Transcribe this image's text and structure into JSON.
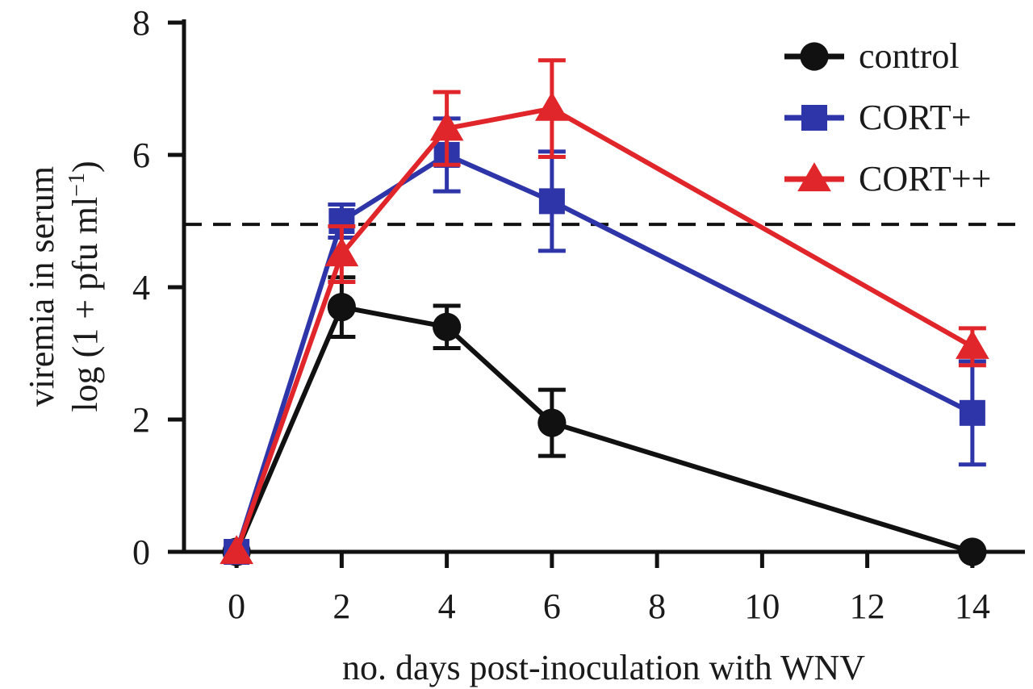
{
  "chart_data": {
    "type": "line",
    "xlabel": "no. days post-inoculation with WNV",
    "ylabel_line1": "viremia in serum",
    "ylabel_line2_prefix": "log (1 + pfu ml",
    "ylabel_line2_sup": "−1",
    "ylabel_line2_suffix": ")",
    "xlim": [
      -1,
      15
    ],
    "ylim": [
      0,
      8
    ],
    "x_ticks": [
      0,
      2,
      4,
      6,
      8,
      10,
      12,
      14
    ],
    "x_tick_labels": [
      "0",
      "2",
      "4",
      "6",
      "8",
      "10",
      "12",
      "14"
    ],
    "y_ticks": [
      0,
      2,
      4,
      6,
      8
    ],
    "y_tick_labels": [
      "0",
      "2",
      "4",
      "6",
      "8"
    ],
    "threshold": 4.95,
    "legend_position": "top-right",
    "series": [
      {
        "name": "control",
        "color": "#111111",
        "marker": "circle",
        "x": [
          0,
          2,
          4,
          6,
          14
        ],
        "y": [
          0,
          3.7,
          3.4,
          1.95,
          0
        ],
        "err": [
          0,
          0.45,
          0.32,
          0.5,
          0
        ]
      },
      {
        "name": "CORT+",
        "color": "#2e35a8",
        "marker": "square",
        "x": [
          0,
          2,
          4,
          6,
          14
        ],
        "y": [
          0,
          5.0,
          6.0,
          5.3,
          2.1
        ],
        "err": [
          0,
          0.25,
          0.55,
          0.75,
          0.78
        ]
      },
      {
        "name": "CORT++",
        "color": "#e0262b",
        "marker": "triangle",
        "x": [
          0,
          2,
          4,
          6,
          14
        ],
        "y": [
          0,
          4.5,
          6.4,
          6.7,
          3.1
        ],
        "err": [
          0,
          0.42,
          0.55,
          0.73,
          0.28
        ]
      }
    ]
  }
}
